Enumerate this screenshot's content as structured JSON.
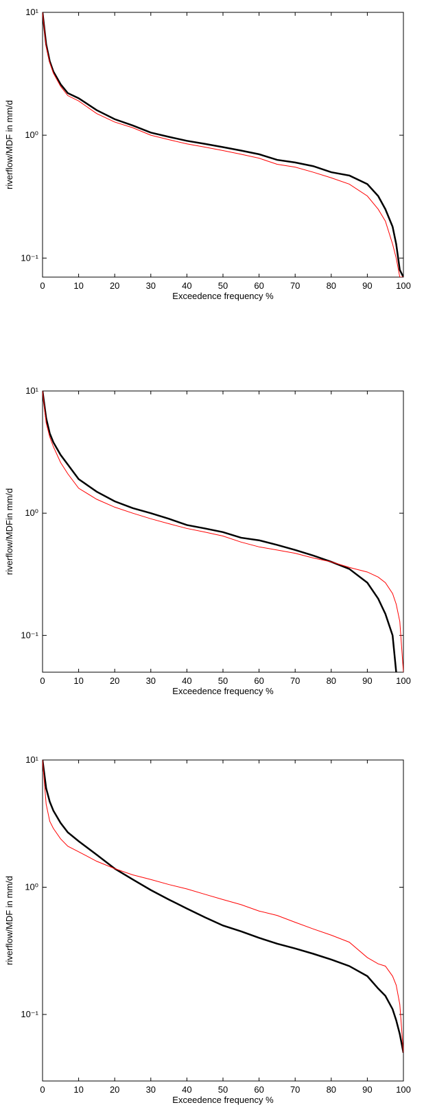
{
  "chart_data": [
    {
      "type": "line",
      "ylabel": "riverflow/MDF in mm/d",
      "xlabel": "Exceedence frequency %",
      "x": [
        0,
        1,
        2,
        3,
        5,
        7,
        10,
        15,
        20,
        25,
        30,
        35,
        40,
        45,
        50,
        55,
        60,
        65,
        70,
        75,
        80,
        85,
        90,
        93,
        95,
        97,
        98,
        99,
        100
      ],
      "series": [
        {
          "color": "#000000",
          "values": [
            10,
            5.5,
            4,
            3.3,
            2.6,
            2.2,
            2.0,
            1.6,
            1.35,
            1.2,
            1.05,
            0.97,
            0.9,
            0.85,
            0.8,
            0.75,
            0.7,
            0.63,
            0.6,
            0.56,
            0.5,
            0.47,
            0.4,
            0.32,
            0.25,
            0.18,
            0.13,
            0.08,
            0.07
          ]
        },
        {
          "color": "#ff0000",
          "values": [
            10,
            5.3,
            3.9,
            3.2,
            2.5,
            2.1,
            1.9,
            1.5,
            1.28,
            1.15,
            1.0,
            0.92,
            0.85,
            0.8,
            0.75,
            0.7,
            0.65,
            0.58,
            0.55,
            0.5,
            0.45,
            0.4,
            0.32,
            0.25,
            0.2,
            0.13,
            0.1,
            0.07,
            0.07
          ]
        }
      ],
      "xlim": [
        0,
        100
      ],
      "xticks": [
        0,
        10,
        20,
        30,
        40,
        50,
        60,
        70,
        80,
        90,
        100
      ],
      "ylim": [
        0.07,
        10
      ],
      "yscale": "log",
      "yticks": [
        {
          "value": 0.1,
          "label": "10⁻¹"
        },
        {
          "value": 1,
          "label": "10⁰"
        },
        {
          "value": 10,
          "label": "10¹"
        }
      ]
    },
    {
      "type": "line",
      "ylabel": "riverflow/MDFin mm/d",
      "xlabel": "Exceedence frequency %",
      "x": [
        0,
        1,
        2,
        3,
        5,
        7,
        10,
        15,
        20,
        25,
        30,
        35,
        40,
        45,
        50,
        55,
        60,
        65,
        70,
        75,
        80,
        85,
        90,
        93,
        95,
        97,
        98,
        99,
        100
      ],
      "series": [
        {
          "color": "#000000",
          "values": [
            10,
            6,
            4.5,
            3.8,
            3.0,
            2.5,
            1.9,
            1.5,
            1.25,
            1.1,
            1.0,
            0.9,
            0.8,
            0.75,
            0.7,
            0.63,
            0.6,
            0.55,
            0.5,
            0.45,
            0.4,
            0.35,
            0.27,
            0.2,
            0.15,
            0.1,
            0.05,
            null,
            null
          ]
        },
        {
          "color": "#ff0000",
          "values": [
            10,
            5.5,
            4.2,
            3.5,
            2.6,
            2.1,
            1.6,
            1.3,
            1.12,
            1.0,
            0.9,
            0.82,
            0.75,
            0.7,
            0.65,
            0.58,
            0.53,
            0.5,
            0.47,
            0.43,
            0.4,
            0.36,
            0.33,
            0.3,
            0.27,
            0.22,
            0.18,
            0.13,
            0.05
          ]
        }
      ],
      "xlim": [
        0,
        100
      ],
      "xticks": [
        0,
        10,
        20,
        30,
        40,
        50,
        60,
        70,
        80,
        90,
        100
      ],
      "ylim": [
        0.05,
        10
      ],
      "yscale": "log",
      "yticks": [
        {
          "value": 0.1,
          "label": "10⁻¹"
        },
        {
          "value": 1,
          "label": "10⁰"
        },
        {
          "value": 10,
          "label": "10¹"
        }
      ]
    },
    {
      "type": "line",
      "ylabel": "riverflow/MDF in mm/d",
      "xlabel": "Exceedence frequency %",
      "x": [
        0,
        1,
        2,
        3,
        5,
        7,
        10,
        15,
        20,
        25,
        30,
        35,
        40,
        45,
        50,
        55,
        60,
        65,
        70,
        75,
        80,
        85,
        90,
        93,
        95,
        97,
        98,
        99,
        100
      ],
      "series": [
        {
          "color": "#000000",
          "values": [
            10,
            6,
            4.7,
            4.0,
            3.2,
            2.7,
            2.3,
            1.8,
            1.4,
            1.15,
            0.95,
            0.8,
            0.68,
            0.58,
            0.5,
            0.45,
            0.4,
            0.36,
            0.33,
            0.3,
            0.27,
            0.24,
            0.2,
            0.16,
            0.14,
            0.11,
            0.09,
            0.07,
            0.05
          ]
        },
        {
          "color": "#ff0000",
          "values": [
            10,
            4.5,
            3.3,
            2.9,
            2.4,
            2.1,
            1.9,
            1.6,
            1.4,
            1.25,
            1.15,
            1.05,
            0.97,
            0.88,
            0.8,
            0.73,
            0.65,
            0.6,
            0.53,
            0.47,
            0.42,
            0.37,
            0.28,
            0.25,
            0.24,
            0.2,
            0.17,
            0.12,
            0.05
          ]
        }
      ],
      "xlim": [
        0,
        100
      ],
      "xticks": [
        0,
        10,
        20,
        30,
        40,
        50,
        60,
        70,
        80,
        90,
        100
      ],
      "ylim": [
        0.03,
        10
      ],
      "yscale": "log",
      "yticks": [
        {
          "value": 0.1,
          "label": "10⁻¹"
        },
        {
          "value": 1,
          "label": "10⁰"
        },
        {
          "value": 10,
          "label": "10¹"
        }
      ]
    }
  ]
}
